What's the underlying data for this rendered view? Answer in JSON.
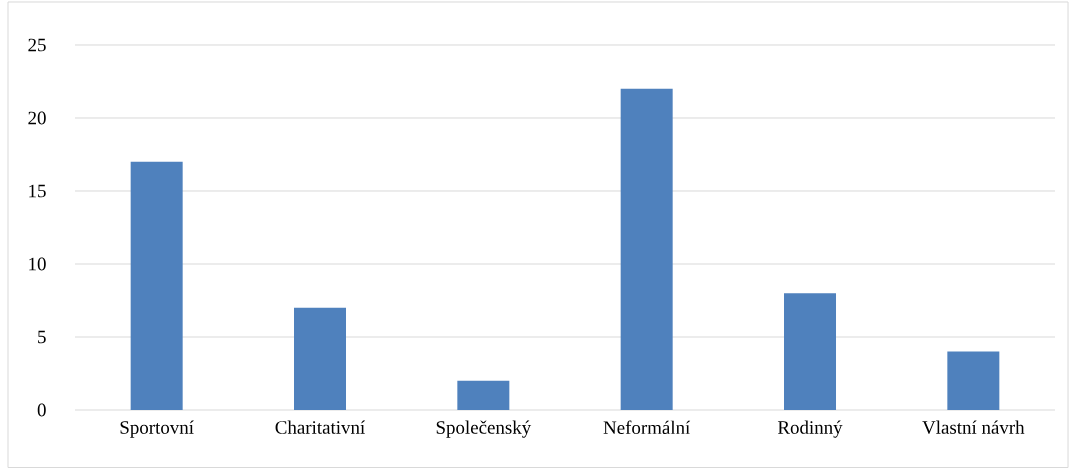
{
  "chart_data": {
    "type": "bar",
    "categories": [
      "Sportovní",
      "Charitativní",
      "Společenský",
      "Neformální",
      "Rodinný",
      "Vlastní návrh"
    ],
    "values": [
      17,
      7,
      2,
      22,
      8,
      4
    ],
    "color": "#4f81bd",
    "ylim": [
      0,
      25
    ],
    "yticks": [
      0,
      5,
      10,
      15,
      20,
      25
    ],
    "grid": "y"
  }
}
